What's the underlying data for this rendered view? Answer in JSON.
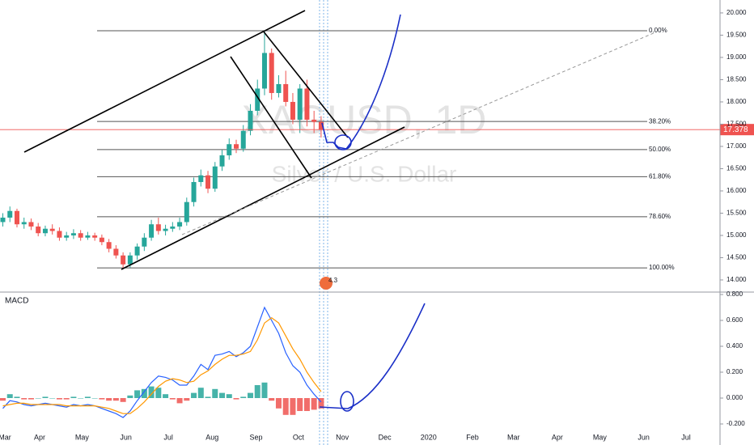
{
  "chart_data": [
    {
      "type": "candlestick",
      "watermark": "XAGUSD, 1D",
      "watermark_subtitle": "Silver / U.S. Dollar",
      "event_label": "4.3",
      "xlim": [
        3,
        512
      ],
      "ylim": [
        13.745,
        20.29
      ],
      "yticks": [
        {
          "value": 14,
          "label": "14.000"
        },
        {
          "value": 14.5,
          "label": "14.500"
        },
        {
          "value": 15,
          "label": "15.000"
        },
        {
          "value": 15.5,
          "label": "15.500"
        },
        {
          "value": 16,
          "label": "16.000"
        },
        {
          "value": 16.5,
          "label": "16.500"
        },
        {
          "value": 17,
          "label": "17.000"
        },
        {
          "value": 17.5,
          "label": "17.500"
        },
        {
          "value": 18,
          "label": "18.000"
        },
        {
          "value": 18.5,
          "label": "18.500"
        },
        {
          "value": 19,
          "label": "19.000"
        },
        {
          "value": 19.5,
          "label": "19.500"
        },
        {
          "value": 20,
          "label": "20.000"
        }
      ],
      "up_color": "#26a69a",
      "down_color": "#ef5350",
      "last_price": 17.378,
      "last_price_color": "#ef5350",
      "levels": [
        {
          "label": "0.00%",
          "value": 19.6
        },
        {
          "label": "38.20%",
          "value": 17.56
        },
        {
          "label": "50.00%",
          "value": 16.93
        },
        {
          "label": "61.80%",
          "value": 16.32
        },
        {
          "label": "78.60%",
          "value": 15.42
        },
        {
          "label": "100.00%",
          "value": 14.27
        }
      ],
      "x": [
        5,
        10,
        15,
        20,
        25,
        30,
        35,
        40,
        45,
        50,
        55,
        60,
        65,
        70,
        75,
        80,
        85,
        90,
        95,
        100,
        105,
        110,
        115,
        120,
        125,
        130,
        135,
        140,
        145,
        150,
        155,
        160,
        165,
        170,
        175,
        180,
        185,
        190,
        195,
        200,
        205,
        210,
        215,
        220,
        225,
        230
      ],
      "open": [
        15.3,
        15.4,
        15.55,
        15.25,
        15.3,
        15.2,
        15.05,
        15.15,
        15.1,
        14.95,
        15.0,
        15.05,
        14.95,
        15.0,
        14.95,
        14.85,
        14.7,
        14.55,
        14.35,
        14.55,
        14.75,
        14.95,
        15.25,
        15.1,
        15.15,
        15.2,
        15.3,
        15.75,
        16.2,
        16.35,
        16.05,
        16.55,
        16.8,
        17.05,
        16.95,
        17.35,
        17.8,
        18.3,
        19.1,
        18.2,
        18.4,
        18.0,
        17.6,
        18.3,
        17.6,
        17.55
      ],
      "high": [
        15.5,
        15.65,
        15.6,
        15.4,
        15.38,
        15.28,
        15.22,
        15.25,
        15.18,
        15.08,
        15.14,
        15.12,
        15.08,
        15.06,
        15.02,
        14.92,
        14.78,
        14.62,
        14.62,
        14.82,
        15.05,
        15.35,
        15.4,
        15.24,
        15.3,
        15.4,
        15.85,
        16.3,
        16.48,
        16.45,
        16.65,
        16.92,
        17.18,
        17.15,
        17.48,
        17.95,
        18.5,
        19.6,
        19.2,
        18.6,
        18.7,
        18.2,
        18.4,
        18.5,
        17.8,
        17.68
      ],
      "low": [
        15.2,
        15.3,
        15.18,
        15.15,
        15.12,
        14.98,
        14.98,
        15.02,
        14.88,
        14.88,
        14.92,
        14.88,
        14.9,
        14.88,
        14.78,
        14.62,
        14.48,
        14.25,
        14.28,
        14.45,
        14.65,
        14.88,
        15.02,
        15.0,
        15.08,
        15.12,
        15.22,
        15.65,
        16.1,
        15.95,
        15.98,
        16.45,
        16.7,
        16.85,
        16.88,
        17.25,
        17.7,
        18.15,
        18.05,
        18.1,
        17.9,
        17.5,
        17.3,
        17.45,
        17.3,
        17.2
      ],
      "close": [
        15.4,
        15.55,
        15.25,
        15.3,
        15.2,
        15.05,
        15.15,
        15.1,
        14.95,
        15.0,
        15.05,
        14.95,
        15.0,
        14.95,
        14.85,
        14.7,
        14.55,
        14.35,
        14.55,
        14.75,
        14.95,
        15.25,
        15.1,
        15.15,
        15.2,
        15.3,
        15.75,
        16.2,
        16.35,
        16.05,
        16.55,
        16.8,
        17.05,
        16.95,
        17.35,
        17.8,
        18.3,
        19.1,
        18.2,
        18.4,
        18.0,
        17.6,
        18.3,
        17.6,
        17.55,
        17.38
      ]
    },
    {
      "type": "macd",
      "title": "MACD",
      "xlim": [
        3,
        512
      ],
      "ylim": [
        -0.2375,
        0.8125
      ],
      "yticks": [
        {
          "value": -0.2,
          "label": "-0.200"
        },
        {
          "value": 0,
          "label": "0.000"
        },
        {
          "value": 0.2,
          "label": "0.200"
        },
        {
          "value": 0.4,
          "label": "0.400"
        },
        {
          "value": 0.6,
          "label": "0.600"
        },
        {
          "value": 0.8,
          "label": "0.800"
        }
      ],
      "xticks": [
        {
          "value": 0,
          "label": "Mar"
        },
        {
          "value": 31,
          "label": "Apr"
        },
        {
          "value": 61,
          "label": "May"
        },
        {
          "value": 92,
          "label": "Jun"
        },
        {
          "value": 122,
          "label": "Jul"
        },
        {
          "value": 153,
          "label": "Aug"
        },
        {
          "value": 184,
          "label": "Sep"
        },
        {
          "value": 214,
          "label": "Oct"
        },
        {
          "value": 245,
          "label": "Nov"
        },
        {
          "value": 275,
          "label": "Dec"
        },
        {
          "value": 306,
          "label": "2020"
        },
        {
          "value": 337,
          "label": "Feb"
        },
        {
          "value": 366,
          "label": "Mar"
        },
        {
          "value": 397,
          "label": "Apr"
        },
        {
          "value": 427,
          "label": "May"
        },
        {
          "value": 458,
          "label": "Jun"
        },
        {
          "value": 488,
          "label": "Jul"
        }
      ],
      "x": [
        5,
        10,
        15,
        20,
        25,
        30,
        35,
        40,
        45,
        50,
        55,
        60,
        65,
        70,
        75,
        80,
        85,
        90,
        95,
        100,
        105,
        110,
        115,
        120,
        125,
        130,
        135,
        140,
        145,
        150,
        155,
        160,
        165,
        170,
        175,
        180,
        185,
        190,
        195,
        200,
        205,
        210,
        215,
        220,
        225,
        230
      ],
      "series": [
        {
          "name": "MACD",
          "color": "#2962ff",
          "values": [
            -0.08,
            -0.02,
            -0.03,
            -0.05,
            -0.06,
            -0.05,
            -0.04,
            -0.05,
            -0.06,
            -0.07,
            -0.05,
            -0.06,
            -0.05,
            -0.06,
            -0.08,
            -0.1,
            -0.12,
            -0.15,
            -0.1,
            -0.02,
            0.05,
            0.12,
            0.17,
            0.16,
            0.14,
            0.1,
            0.1,
            0.17,
            0.26,
            0.22,
            0.33,
            0.34,
            0.36,
            0.32,
            0.35,
            0.4,
            0.55,
            0.7,
            0.6,
            0.5,
            0.35,
            0.25,
            0.2,
            0.1,
            0.03,
            -0.03
          ]
        },
        {
          "name": "Signal",
          "color": "#ff9800",
          "values": [
            -0.06,
            -0.05,
            -0.04,
            -0.04,
            -0.05,
            -0.05,
            -0.05,
            -0.05,
            -0.05,
            -0.06,
            -0.06,
            -0.06,
            -0.06,
            -0.06,
            -0.07,
            -0.08,
            -0.1,
            -0.12,
            -0.12,
            -0.08,
            -0.03,
            0.03,
            0.09,
            0.13,
            0.15,
            0.14,
            0.12,
            0.13,
            0.18,
            0.21,
            0.26,
            0.3,
            0.33,
            0.33,
            0.34,
            0.36,
            0.45,
            0.58,
            0.62,
            0.58,
            0.48,
            0.38,
            0.3,
            0.2,
            0.12,
            0.05
          ]
        }
      ],
      "histogram": [
        -0.02,
        0.03,
        0.01,
        -0.01,
        -0.01,
        0,
        0.01,
        0,
        -0.01,
        -0.01,
        0.01,
        0,
        0.01,
        0,
        -0.01,
        -0.02,
        -0.02,
        -0.03,
        0.02,
        0.06,
        0.07,
        0.09,
        0.08,
        0.03,
        -0.01,
        -0.04,
        -0.02,
        0.04,
        0.08,
        0.01,
        0.07,
        0.04,
        0.03,
        -0.01,
        0.01,
        0.04,
        0.1,
        0.12,
        -0.02,
        -0.08,
        -0.13,
        -0.13,
        -0.1,
        -0.1,
        -0.09,
        -0.08
      ],
      "histogram_up_color": "#26a69a",
      "histogram_down_color": "#ef5350"
    }
  ]
}
